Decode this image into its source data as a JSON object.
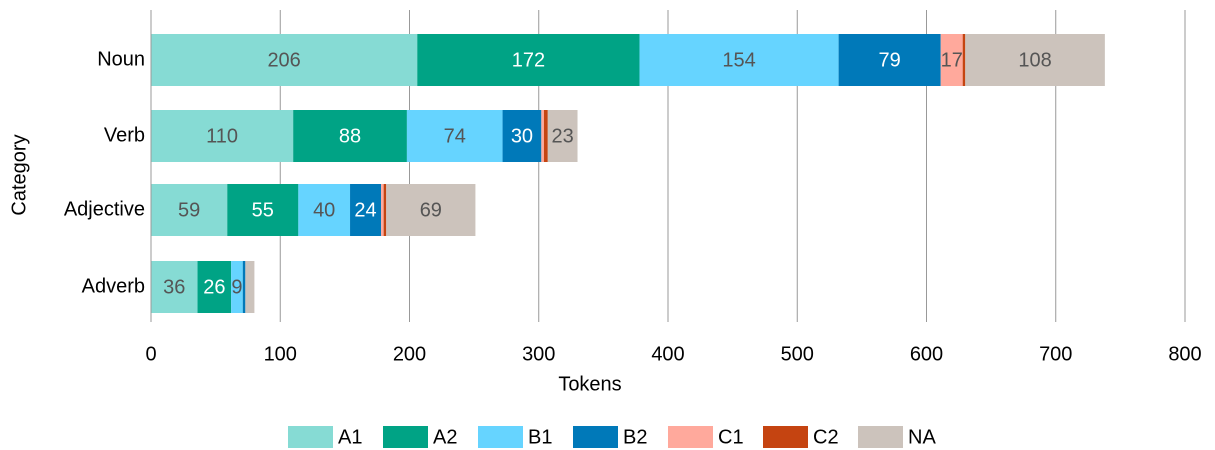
{
  "chart_data": {
    "type": "stacked_barh",
    "categories": [
      "Noun",
      "Verb",
      "Adjective",
      "Adverb"
    ],
    "x_label": "Tokens",
    "y_label": "Category",
    "xlim": [
      0,
      800
    ],
    "xticks": [
      0,
      100,
      200,
      300,
      400,
      500,
      600,
      700,
      800
    ],
    "grid": true,
    "legend": "bottom",
    "series": [
      {
        "name": "A1",
        "color": "#86dbd4",
        "values": [
          206,
          110,
          59,
          36
        ],
        "value_labels": [
          "206",
          "110",
          "59",
          "36"
        ]
      },
      {
        "name": "A2",
        "color": "#00a385",
        "values": [
          172,
          88,
          55,
          26
        ],
        "value_labels": [
          "172",
          "88",
          "55",
          "26"
        ]
      },
      {
        "name": "B1",
        "color": "#66d4ff",
        "values": [
          154,
          74,
          40,
          9
        ],
        "value_labels": [
          "154",
          "74",
          "40",
          "9"
        ]
      },
      {
        "name": "B2",
        "color": "#0079b9",
        "values": [
          79,
          30,
          24,
          2
        ],
        "value_labels": [
          "79",
          "30",
          "24",
          null
        ]
      },
      {
        "name": "C1",
        "color": "#ffa99c",
        "values": [
          17,
          2,
          2,
          0
        ],
        "value_labels": [
          "17",
          null,
          null,
          null
        ]
      },
      {
        "name": "C2",
        "color": "#c54411",
        "values": [
          2,
          3,
          2,
          0
        ],
        "value_labels": [
          null,
          null,
          null,
          null
        ]
      },
      {
        "name": "NA",
        "color": "#ccc3bc",
        "values": [
          108,
          23,
          69,
          7
        ],
        "value_labels": [
          "108",
          "23",
          "69",
          null
        ]
      }
    ]
  }
}
